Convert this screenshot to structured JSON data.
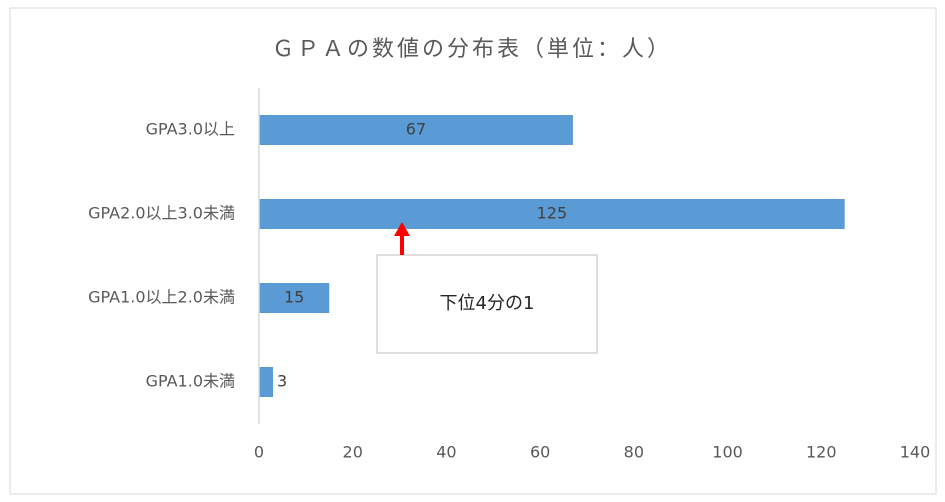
{
  "chart_data": {
    "type": "hbar",
    "title": "ＧＰＡの数値の分布表（単位：人）",
    "categories": [
      "GPA3.0以上",
      "GPA2.0以上3.0未満",
      "GPA1.0以上2.0未満",
      "GPA1.0未満"
    ],
    "values": [
      67,
      125,
      15,
      3
    ],
    "color": "#5b9bd5",
    "xlim": [
      0,
      140
    ],
    "xticks": [
      0,
      20,
      40,
      60,
      80,
      100,
      120,
      140
    ],
    "grid": false,
    "annotation": "下位4分の1"
  }
}
